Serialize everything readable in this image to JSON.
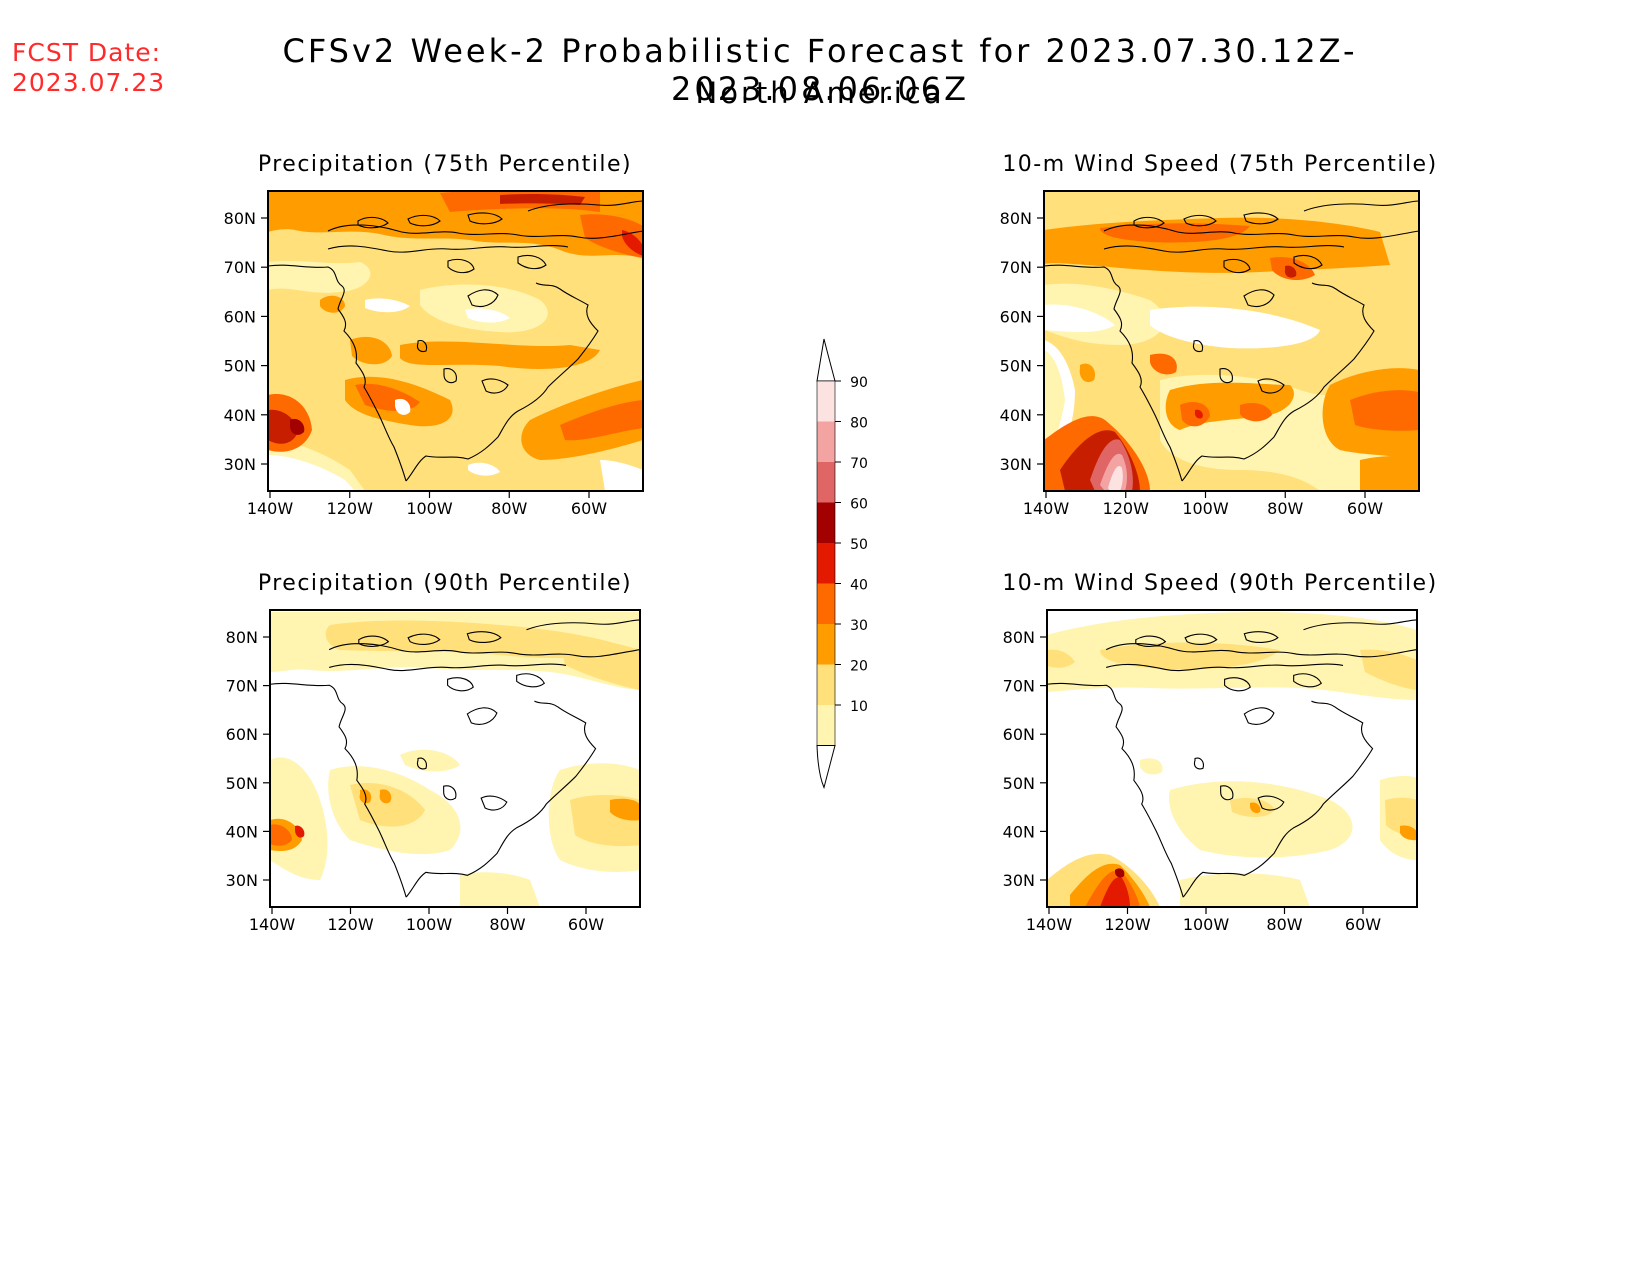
{
  "header": {
    "fcst_label": "FCST Date:",
    "fcst_date": "2023.07.23",
    "title": "CFSv2 Week-2 Probabilistic Forecast for 2023.07.30.12Z-2023.08.06.06Z",
    "subtitle": "North America"
  },
  "panels": [
    {
      "title": "Precipitation (75th Percentile)"
    },
    {
      "title": "10-m Wind Speed (75th Percentile)"
    },
    {
      "title": "Precipitation (90th Percentile)"
    },
    {
      "title": "10-m Wind Speed (90th Percentile)"
    }
  ],
  "axes": {
    "lat_labels": [
      "80N",
      "70N",
      "60N",
      "50N",
      "40N",
      "30N"
    ],
    "lon_labels": [
      "140W",
      "120W",
      "100W",
      "80W",
      "60W"
    ]
  },
  "colorbar": {
    "labels": [
      "90",
      "80",
      "70",
      "60",
      "50",
      "40",
      "30",
      "20",
      "10"
    ],
    "colors": [
      "#fde2e2",
      "#f4a3a3",
      "#e06666",
      "#a30000",
      "#e31a00",
      "#ff6a00",
      "#ff9c00",
      "#ffe07a",
      "#fff4b0"
    ]
  }
}
